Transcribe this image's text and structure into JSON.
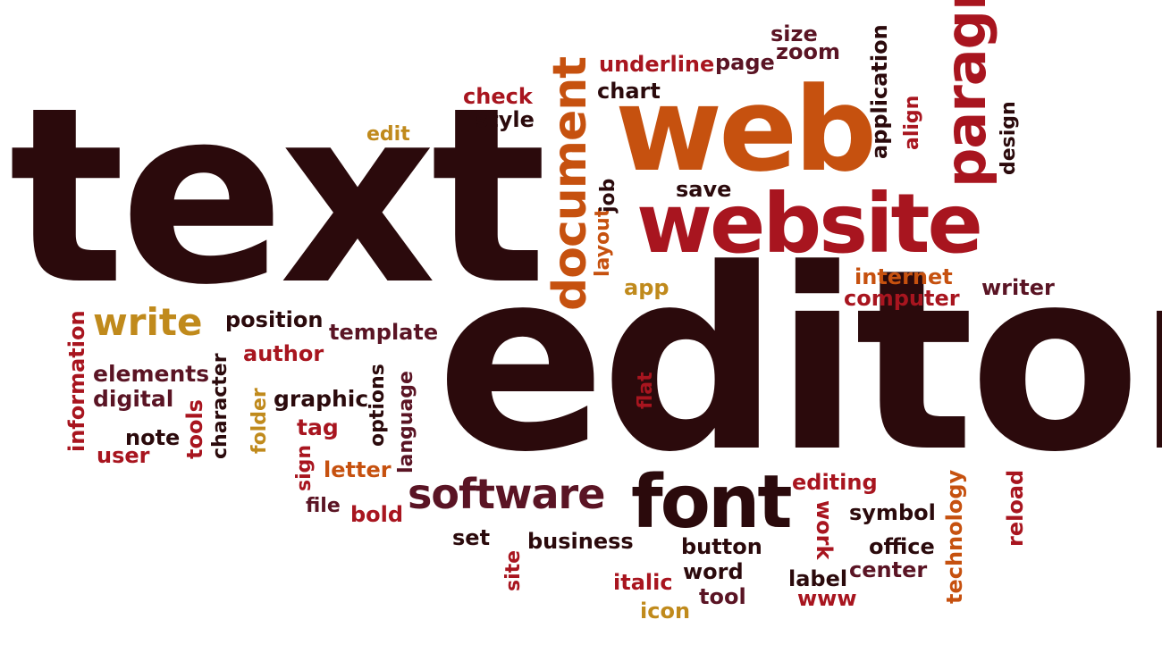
{
  "colors": {
    "dark": "#2b0a0c",
    "maroon": "#5a1424",
    "red": "#a8151f",
    "crimson": "#b81d2a",
    "orange": "#c6510f",
    "gold": "#c08a1c"
  },
  "words": {
    "text": "text",
    "editor": "editor",
    "web": "web",
    "website": "website",
    "font": "font",
    "software": "software",
    "document": "document",
    "paragraph": "paragraph",
    "write": "write",
    "position": "position",
    "template": "template",
    "author": "author",
    "elements": "elements",
    "digital": "digital",
    "note": "note",
    "user": "user",
    "information": "information",
    "tools": "tools",
    "character": "character",
    "folder": "folder",
    "graphic": "graphic",
    "tag": "tag",
    "options": "options",
    "language": "language",
    "sign": "sign",
    "letter": "letter",
    "file": "file",
    "bold": "bold",
    "set": "set",
    "business": "business",
    "site": "site",
    "italic": "italic",
    "icon": "icon",
    "button": "button",
    "word": "word",
    "tool": "tool",
    "editing": "editing",
    "work": "work",
    "symbol": "symbol",
    "office": "office",
    "center": "center",
    "label": "label",
    "www": "www",
    "technology": "technology",
    "reload": "reload",
    "writer": "writer",
    "internet": "internet",
    "computer": "computer",
    "app": "app",
    "flat": "flat",
    "layout": "layout",
    "job": "job",
    "save": "save",
    "chart": "chart",
    "underline": "underline",
    "page": "page",
    "size": "size",
    "zoom": "zoom",
    "application": "application",
    "align": "align",
    "design": "design",
    "check": "check",
    "style": "style",
    "edit": "edit"
  }
}
